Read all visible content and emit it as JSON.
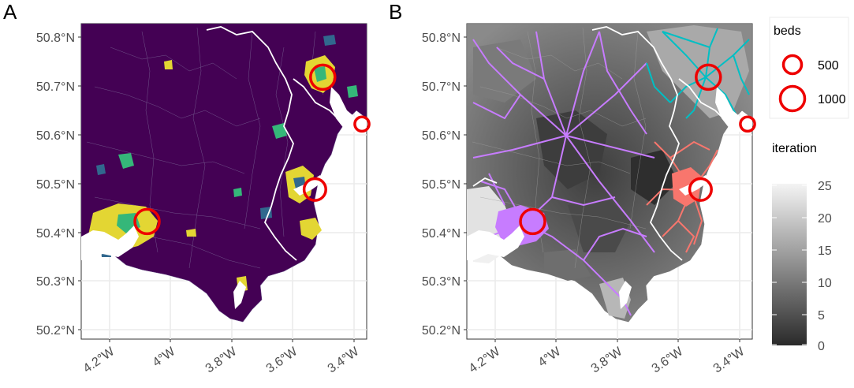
{
  "chart_data": [
    {
      "type": "heatmap",
      "panel_label": "A",
      "xlabel": "",
      "ylabel": "",
      "x_ticks": [
        "4.2°W",
        "4°W",
        "3.8°W",
        "3.6°W",
        "3.4°W"
      ],
      "x_tick_values": [
        -4.2,
        -4.0,
        -3.8,
        -3.6,
        -3.4
      ],
      "y_ticks": [
        "50.8°N",
        "50.7°N",
        "50.6°N",
        "50.5°N",
        "50.4°N",
        "50.3°N",
        "50.2°N"
      ],
      "y_tick_values": [
        50.8,
        50.7,
        50.6,
        50.5,
        50.4,
        50.3,
        50.2
      ],
      "xlim": [
        -4.3,
        -3.39
      ],
      "ylim": [
        50.17,
        50.83
      ],
      "grid": true,
      "hospitals": [
        {
          "lon": -4.09,
          "lat": 50.416,
          "beds": 1000
        },
        {
          "lon": -3.53,
          "lat": 50.718,
          "beds": 1000
        },
        {
          "lon": -3.555,
          "lat": 50.483,
          "beds": 700
        },
        {
          "lon": -3.405,
          "lat": 50.62,
          "beds": 150
        }
      ]
    },
    {
      "type": "heatmap",
      "panel_label": "B",
      "xlabel": "",
      "ylabel": "",
      "x_ticks": [
        "4.2°W",
        "4°W",
        "3.8°W",
        "3.6°W",
        "3.4°W"
      ],
      "x_tick_values": [
        -4.2,
        -4.0,
        -3.8,
        -3.6,
        -3.4
      ],
      "y_ticks": [
        "50.8°N",
        "50.7°N",
        "50.6°N",
        "50.5°N",
        "50.4°N",
        "50.3°N",
        "50.2°N"
      ],
      "y_tick_values": [
        50.8,
        50.7,
        50.6,
        50.5,
        50.4,
        50.3,
        50.2
      ],
      "xlim": [
        -4.3,
        -3.39
      ],
      "ylim": [
        50.17,
        50.83
      ],
      "grid": true,
      "network_colors": {
        "plymouth": "#c77cff",
        "exeter": "#00bfc4",
        "torbay": "#f8766d"
      },
      "hospitals": [
        {
          "lon": -4.09,
          "lat": 50.416,
          "beds": 1000
        },
        {
          "lon": -3.53,
          "lat": 50.718,
          "beds": 1000
        },
        {
          "lon": -3.555,
          "lat": 50.483,
          "beds": 700
        },
        {
          "lon": -3.405,
          "lat": 50.62,
          "beds": 150
        }
      ]
    }
  ],
  "legend_beds": {
    "title": "beds",
    "entries": [
      {
        "label": "500",
        "beds": 500
      },
      {
        "label": "1000",
        "beds": 1000
      }
    ],
    "color": "#ee0000"
  },
  "legend_iteration": {
    "title": "iteration",
    "ticks": [
      "25",
      "20",
      "15",
      "10",
      "5",
      "0"
    ],
    "tick_values": [
      25,
      20,
      15,
      10,
      5,
      0
    ],
    "range": [
      0,
      25
    ]
  },
  "colors": {
    "panel_a_fill": "#440154",
    "hospital": "#ee0000",
    "grid": "#ebebeb",
    "coast": "#ffffff"
  }
}
